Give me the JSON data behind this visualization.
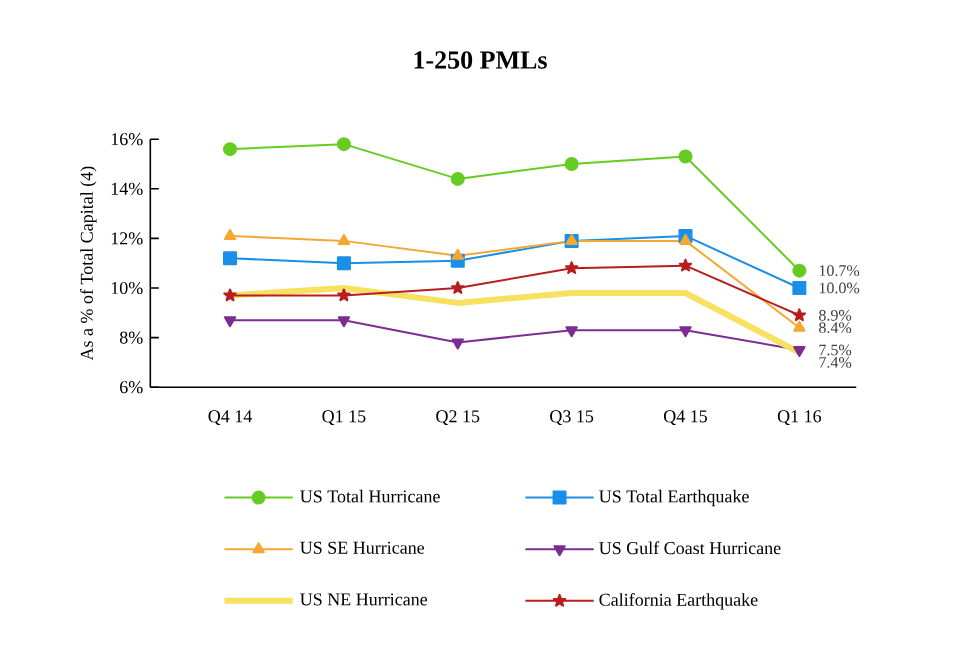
{
  "chart_data": {
    "type": "line",
    "title": "1-250 PMLs",
    "ylabel": "As a % of Total Capital (4)",
    "categories": [
      "Q4 14",
      "Q1 15",
      "Q2 15",
      "Q3 15",
      "Q4 15",
      "Q1 16"
    ],
    "ylim": [
      6,
      16
    ],
    "yticks": [
      {
        "value": 6,
        "label": "6%"
      },
      {
        "value": 8,
        "label": "8%"
      },
      {
        "value": 10,
        "label": "10%"
      },
      {
        "value": 12,
        "label": "12%"
      },
      {
        "value": 14,
        "label": "14%"
      },
      {
        "value": 16,
        "label": "16%"
      }
    ],
    "grid": false,
    "legend": "bottom",
    "series": [
      {
        "name": "US Total Hurricane",
        "color": "#66cc22",
        "marker": "circle",
        "values": [
          15.6,
          15.8,
          14.4,
          15.0,
          15.3,
          10.7
        ],
        "value_labels": [
          null,
          null,
          null,
          null,
          null,
          "10.7%"
        ]
      },
      {
        "name": "US Total Earthquake",
        "color": "#1a8fe8",
        "marker": "square",
        "values": [
          11.2,
          11.0,
          11.1,
          11.9,
          12.1,
          10.0
        ],
        "value_labels": [
          null,
          null,
          null,
          null,
          null,
          "10.0%"
        ]
      },
      {
        "name": "US SE Hurricane",
        "color": "#f5a733",
        "marker": "triangle",
        "values": [
          12.1,
          11.9,
          11.3,
          11.9,
          11.9,
          8.4
        ],
        "value_labels": [
          null,
          null,
          null,
          null,
          null,
          "8.4%"
        ]
      },
      {
        "name": "US Gulf Coast Hurricane",
        "color": "#7b2d91",
        "marker": "triangle-down",
        "values": [
          8.7,
          8.7,
          7.8,
          8.3,
          8.3,
          7.5
        ],
        "value_labels": [
          null,
          null,
          null,
          null,
          null,
          "7.5%"
        ]
      },
      {
        "name": "US NE Hurricane",
        "color": "#f8e060",
        "marker": "none",
        "values": [
          9.7,
          10.0,
          9.4,
          9.8,
          9.8,
          7.4
        ],
        "value_labels": [
          null,
          null,
          null,
          null,
          null,
          "7.4%"
        ]
      },
      {
        "name": "California Earthquake",
        "color": "#b81e1e",
        "marker": "star",
        "values": [
          9.7,
          9.7,
          10.0,
          10.8,
          10.9,
          8.9
        ],
        "value_labels": [
          null,
          null,
          null,
          null,
          null,
          "8.9%"
        ]
      }
    ]
  }
}
